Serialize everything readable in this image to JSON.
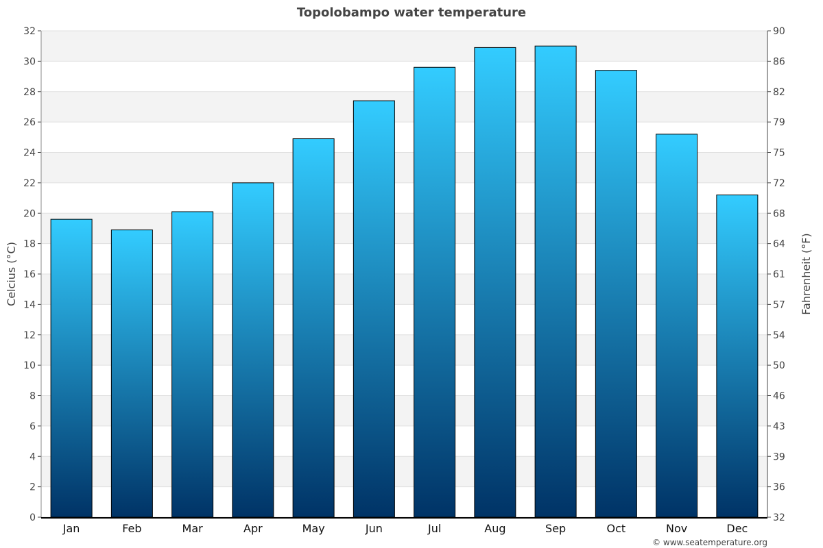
{
  "chart_data": {
    "type": "bar",
    "title": "Topolobampo water temperature",
    "ylabel": "Celcius (°C)",
    "ylabel_right": "Fahrenheit (°F)",
    "ylim": [
      0,
      32
    ],
    "categories": [
      "Jan",
      "Feb",
      "Mar",
      "Apr",
      "May",
      "Jun",
      "Jul",
      "Aug",
      "Sep",
      "Oct",
      "Nov",
      "Dec"
    ],
    "values": [
      19.6,
      18.9,
      20.1,
      22.0,
      24.9,
      27.4,
      29.6,
      30.9,
      31.0,
      29.4,
      25.2,
      21.2
    ],
    "yticks": [
      0,
      2,
      4,
      6,
      8,
      10,
      12,
      14,
      16,
      18,
      20,
      22,
      24,
      26,
      28,
      30,
      32
    ],
    "yticks_right": [
      32,
      36,
      39,
      43,
      46,
      50,
      54,
      57,
      61,
      64,
      68,
      72,
      75,
      79,
      82,
      86,
      90
    ],
    "grid": true,
    "bar_gradient": [
      "#33ccff",
      "#003366"
    ],
    "stripe_color": "#f3f3f3",
    "credit": "© www.seatemperature.org"
  }
}
